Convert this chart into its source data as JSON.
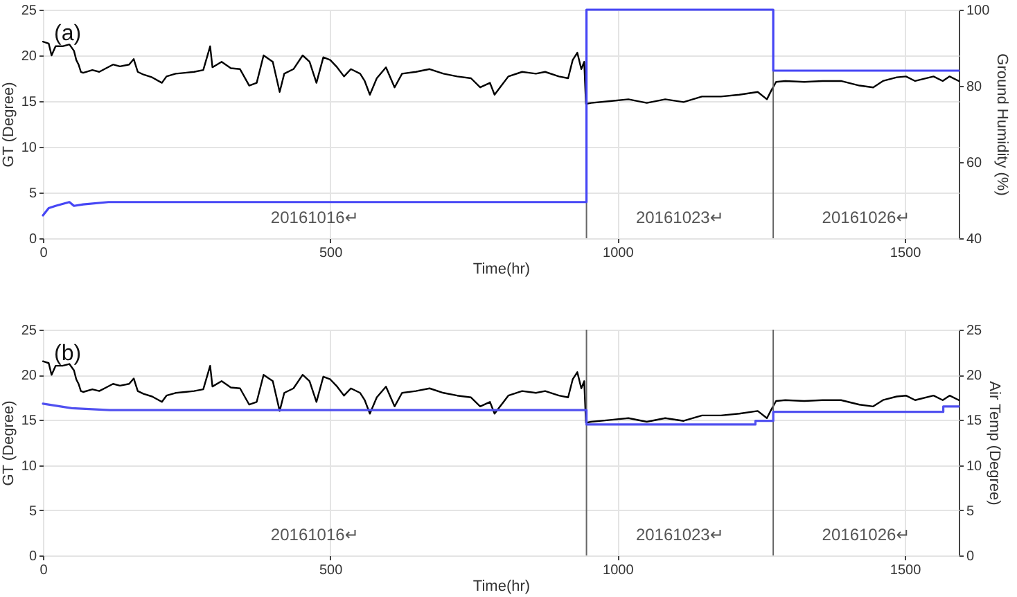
{
  "chart_data": [
    {
      "type": "line",
      "title": "(a)",
      "xlabel": "Time(hr)",
      "ylabel": "GT (Degree)",
      "y2label": "Ground Humidity (%)",
      "xlim": [
        0,
        1594
      ],
      "xticks": [
        0,
        500,
        1000,
        1500
      ],
      "ylim": [
        0,
        25
      ],
      "yticks": [
        0,
        5,
        10,
        15,
        20,
        25
      ],
      "y2lim": [
        40,
        100
      ],
      "y2ticks": [
        40,
        60,
        80,
        100
      ],
      "grid": true,
      "series": [
        {
          "color": "#000000",
          "x": [
            0,
            10,
            15,
            22,
            34,
            46,
            54,
            58,
            62,
            66,
            70,
            86,
            98,
            110,
            122,
            134,
            150,
            158,
            165,
            175,
            190,
            207,
            215,
            231,
            247,
            263,
            279,
            291,
            295,
            311,
            327,
            343,
            359,
            372,
            384,
            400,
            412,
            420,
            436,
            452,
            464,
            476,
            488,
            500,
            512,
            524,
            536,
            552,
            560,
            569,
            581,
            597,
            612,
            625,
            649,
            673,
            697,
            721,
            745,
            761,
            778,
            786,
            798,
            810,
            834,
            858,
            874,
            898,
            914,
            922,
            930,
            937,
            942,
            945,
            954,
            987,
            1019,
            1051,
            1083,
            1115,
            1147,
            1180,
            1212,
            1244,
            1260,
            1268,
            1276,
            1292,
            1325,
            1357,
            1389,
            1421,
            1445,
            1462,
            1486,
            1502,
            1518,
            1550,
            1566,
            1578,
            1594
          ],
          "values": [
            21.5,
            21.3,
            20.0,
            21.0,
            21.0,
            21.2,
            20.5,
            19.5,
            19.0,
            18.2,
            18.1,
            18.4,
            18.2,
            18.6,
            19.0,
            18.8,
            19.0,
            19.6,
            18.2,
            17.9,
            17.6,
            17.0,
            17.7,
            18.0,
            18.1,
            18.2,
            18.4,
            21.0,
            18.7,
            19.3,
            18.6,
            18.5,
            16.7,
            17.0,
            20.0,
            19.3,
            16.0,
            18.0,
            18.5,
            20.0,
            19.3,
            17.0,
            19.8,
            19.5,
            18.7,
            17.7,
            18.5,
            18.0,
            17.2,
            15.7,
            17.5,
            18.7,
            16.5,
            18.0,
            18.2,
            18.5,
            18.0,
            17.7,
            17.5,
            16.5,
            17.0,
            15.7,
            16.7,
            17.7,
            18.2,
            18.0,
            18.2,
            17.7,
            17.5,
            19.5,
            20.3,
            18.5,
            19.3,
            14.7,
            14.8,
            15.0,
            15.2,
            14.8,
            15.2,
            14.9,
            15.5,
            15.5,
            15.7,
            16.0,
            15.2,
            16.2,
            17.1,
            17.2,
            17.1,
            17.2,
            17.2,
            16.7,
            16.5,
            17.2,
            17.6,
            17.7,
            17.2,
            17.7,
            17.2,
            17.7,
            17.2
          ]
        },
        {
          "color": "#4646f5",
          "axis": "y2",
          "x": [
            0,
            10,
            22,
            46,
            54,
            70,
            114,
            946,
            946,
            1271,
            1271,
            1594
          ],
          "values": [
            46,
            47.9,
            48.5,
            49.5,
            48.5,
            48.9,
            49.5,
            49.5,
            100,
            100,
            84,
            84
          ]
        }
      ],
      "ref_lines": [
        {
          "axis": "x",
          "value": 946,
          "color": "#666666"
        },
        {
          "axis": "x",
          "value": 1271,
          "color": "#666666"
        }
      ],
      "annotations": [
        "20161016↵",
        "20161023↵",
        "20161026↵"
      ]
    },
    {
      "type": "line",
      "title": "(b)",
      "xlabel": "Time(hr)",
      "ylabel": "GT (Degree)",
      "y2label": "Air Temp (Degree)",
      "xlim": [
        0,
        1594
      ],
      "xticks": [
        0,
        500,
        1000,
        1500
      ],
      "ylim": [
        0,
        25
      ],
      "yticks": [
        0,
        5,
        10,
        15,
        20,
        25
      ],
      "y2lim": [
        0,
        25
      ],
      "y2ticks": [
        0,
        5,
        10,
        15,
        20,
        25
      ],
      "grid": true,
      "series": [
        {
          "color": "#000000",
          "x": [
            0,
            10,
            15,
            22,
            34,
            46,
            54,
            58,
            62,
            66,
            70,
            86,
            98,
            110,
            122,
            134,
            150,
            158,
            165,
            175,
            190,
            207,
            215,
            231,
            247,
            263,
            279,
            291,
            295,
            311,
            327,
            343,
            359,
            372,
            384,
            400,
            412,
            420,
            436,
            452,
            464,
            476,
            488,
            500,
            512,
            524,
            536,
            552,
            560,
            569,
            581,
            597,
            612,
            625,
            649,
            673,
            697,
            721,
            745,
            761,
            778,
            786,
            798,
            810,
            834,
            858,
            874,
            898,
            914,
            922,
            930,
            937,
            942,
            945,
            954,
            987,
            1019,
            1051,
            1083,
            1115,
            1147,
            1180,
            1212,
            1244,
            1260,
            1268,
            1276,
            1292,
            1325,
            1357,
            1389,
            1421,
            1445,
            1462,
            1486,
            1502,
            1518,
            1550,
            1566,
            1578,
            1594
          ],
          "values": [
            21.5,
            21.3,
            20.0,
            21.0,
            21.0,
            21.2,
            20.5,
            19.5,
            19.0,
            18.2,
            18.1,
            18.4,
            18.2,
            18.6,
            19.0,
            18.8,
            19.0,
            19.6,
            18.2,
            17.9,
            17.6,
            17.0,
            17.7,
            18.0,
            18.1,
            18.2,
            18.4,
            21.0,
            18.7,
            19.3,
            18.6,
            18.5,
            16.7,
            17.0,
            20.0,
            19.3,
            16.0,
            18.0,
            18.5,
            20.0,
            19.3,
            17.0,
            19.8,
            19.5,
            18.7,
            17.7,
            18.5,
            18.0,
            17.2,
            15.7,
            17.5,
            18.7,
            16.5,
            18.0,
            18.2,
            18.5,
            18.0,
            17.7,
            17.5,
            16.5,
            17.0,
            15.7,
            16.7,
            17.7,
            18.2,
            18.0,
            18.2,
            17.7,
            17.5,
            19.5,
            20.3,
            18.5,
            19.3,
            14.7,
            14.8,
            15.0,
            15.2,
            14.8,
            15.2,
            14.9,
            15.5,
            15.5,
            15.7,
            16.0,
            15.2,
            16.2,
            17.1,
            17.2,
            17.1,
            17.2,
            17.2,
            16.7,
            16.5,
            17.2,
            17.6,
            17.7,
            17.2,
            17.7,
            17.2,
            17.7,
            17.2
          ]
        },
        {
          "color": "#5050f0",
          "axis": "y2",
          "x": [
            0,
            50,
            116,
            946,
            946,
            1240,
            1240,
            1271,
            1271,
            1567,
            1567,
            1594
          ],
          "values": [
            16.8,
            16.3,
            16.1,
            16.1,
            14.5,
            14.5,
            14.9,
            14.9,
            15.9,
            15.9,
            16.5,
            16.5
          ]
        }
      ],
      "ref_lines": [
        {
          "axis": "x",
          "value": 946,
          "color": "#666666"
        },
        {
          "axis": "x",
          "value": 1271,
          "color": "#666666"
        }
      ],
      "annotations": [
        "20161016↵",
        "20161023↵",
        "20161026↵"
      ]
    }
  ]
}
